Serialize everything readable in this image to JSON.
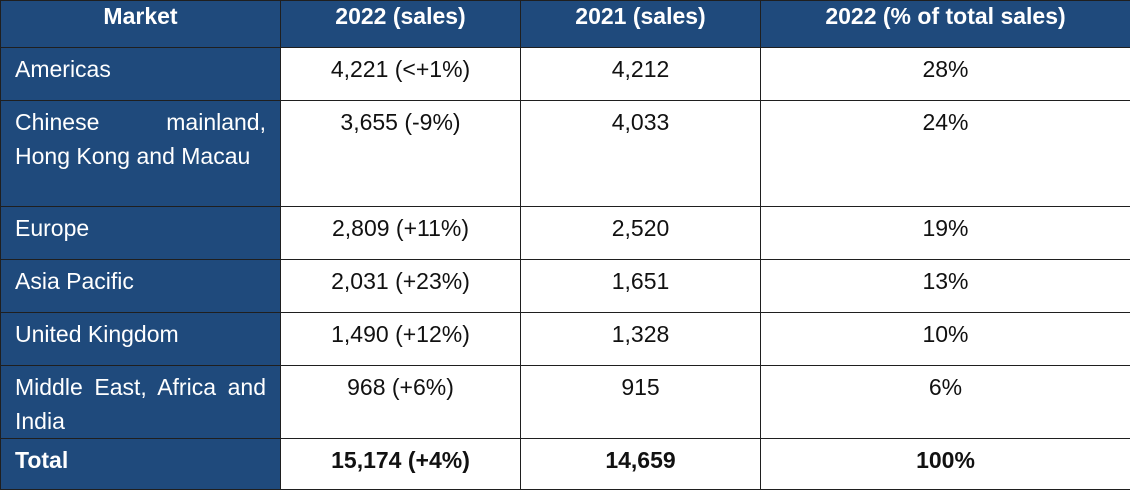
{
  "table": {
    "headers": [
      "Market",
      "2022 (sales)",
      "2021 (sales)",
      "2022 (% of total sales)"
    ],
    "rows": [
      {
        "market": "Americas",
        "sales_2022": "4,221 (<+1%)",
        "sales_2021": "4,212",
        "pct_2022": "28%"
      },
      {
        "market": "Chinese mainland, Hong Kong and Macau",
        "sales_2022": "3,655 (-9%)",
        "sales_2021": "4,033",
        "pct_2022": "24%"
      },
      {
        "market": "Europe",
        "sales_2022": "2,809 (+11%)",
        "sales_2021": "2,520",
        "pct_2022": "19%"
      },
      {
        "market": "Asia Pacific",
        "sales_2022": "2,031 (+23%)",
        "sales_2021": "1,651",
        "pct_2022": "13%"
      },
      {
        "market": "United Kingdom",
        "sales_2022": "1,490 (+12%)",
        "sales_2021": "1,328",
        "pct_2022": "10%"
      },
      {
        "market": "Middle East, Africa and India",
        "sales_2022": "968 (+6%)",
        "sales_2021": "915",
        "pct_2022": "6%"
      }
    ],
    "total": {
      "market": "Total",
      "sales_2022": "15,174 (+4%)",
      "sales_2021": "14,659",
      "pct_2022": "100%"
    }
  },
  "colors": {
    "header_bg": "#1f4a7c",
    "header_text": "#ffffff",
    "cell_bg": "#ffffff",
    "border": "#1f1f1f"
  }
}
